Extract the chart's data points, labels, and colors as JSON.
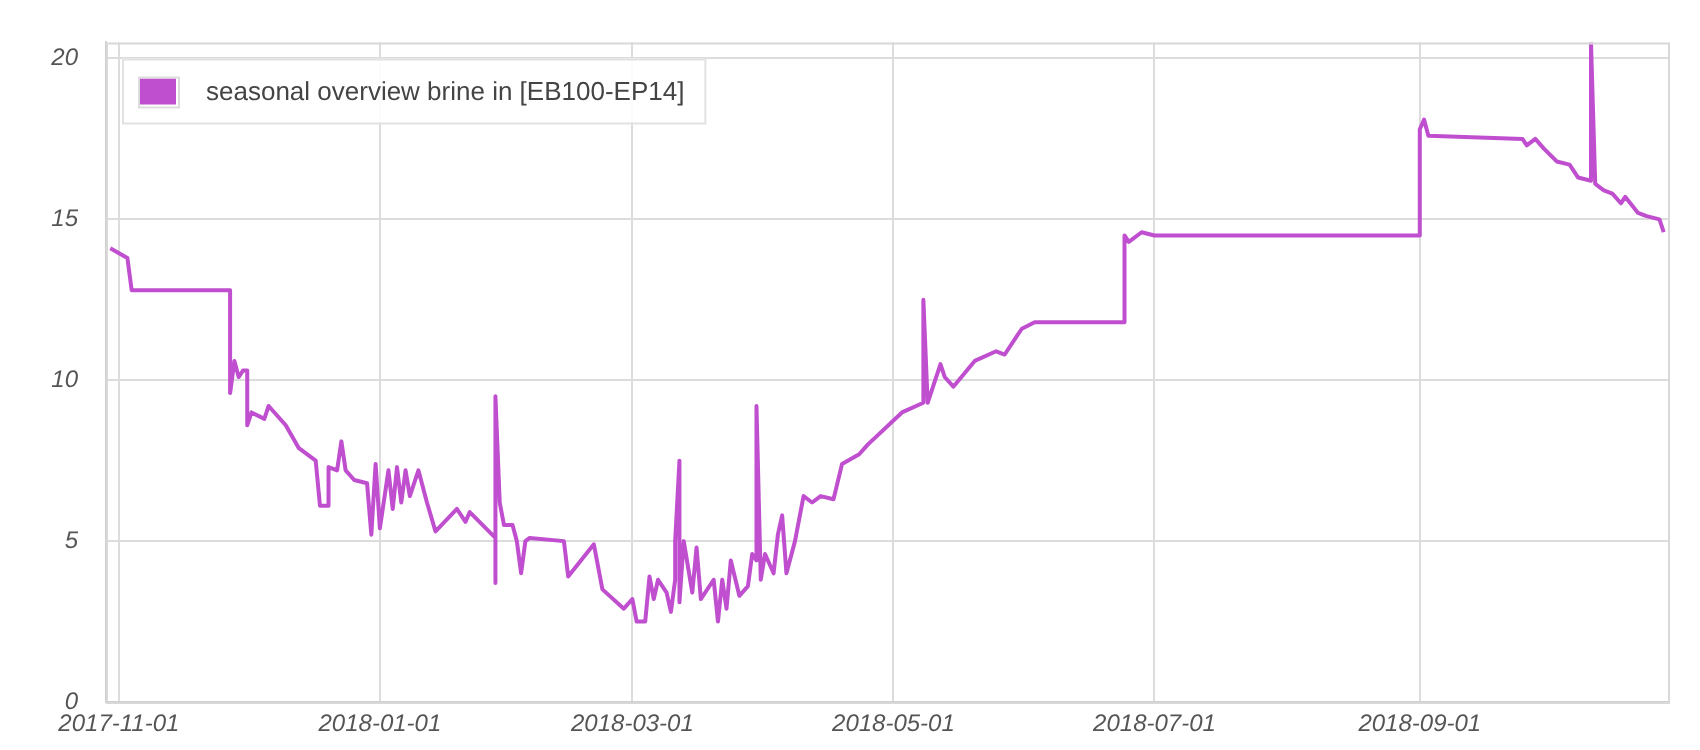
{
  "chart_data": {
    "type": "line",
    "legend": "top left",
    "grid": true,
    "marker": "none",
    "line_style": "solid",
    "xlim": [
      "2017-10-29",
      "2018-10-29"
    ],
    "xticks": [
      "2017-11-01",
      "2018-01-01",
      "2018-03-01",
      "2018-05-01",
      "2018-07-01",
      "2018-09-01"
    ],
    "ylim": [
      0,
      20.5
    ],
    "yticks": [
      0,
      5,
      10,
      15,
      20
    ],
    "series": [
      {
        "name": "seasonal overview brine in [EB100-EP14]",
        "color": "#c04fcf",
        "x": [
          "2017-10-30",
          "2017-11-03",
          "2017-11-04",
          "2017-11-27",
          "2017-11-27",
          "2017-11-28",
          "2017-11-29",
          "2017-11-30",
          "2017-12-01",
          "2017-12-01",
          "2017-12-02",
          "2017-12-05",
          "2017-12-06",
          "2017-12-10",
          "2017-12-13",
          "2017-12-17",
          "2017-12-18",
          "2017-12-20",
          "2017-12-20",
          "2017-12-22",
          "2017-12-23",
          "2017-12-24",
          "2017-12-26",
          "2017-12-29",
          "2017-12-30",
          "2017-12-31",
          "2018-01-01",
          "2018-01-03",
          "2018-01-04",
          "2018-01-05",
          "2018-01-06",
          "2018-01-07",
          "2018-01-08",
          "2018-01-10",
          "2018-01-12",
          "2018-01-14",
          "2018-01-19",
          "2018-01-21",
          "2018-01-22",
          "2018-01-28",
          "2018-01-28",
          "2018-01-28",
          "2018-01-29",
          "2018-01-30",
          "2018-02-01",
          "2018-02-02",
          "2018-02-03",
          "2018-02-04",
          "2018-02-05",
          "2018-02-13",
          "2018-02-14",
          "2018-02-20",
          "2018-02-22",
          "2018-02-27",
          "2018-03-01",
          "2018-03-02",
          "2018-03-04",
          "2018-03-05",
          "2018-03-06",
          "2018-03-07",
          "2018-03-09",
          "2018-03-10",
          "2018-03-11",
          "2018-03-11",
          "2018-03-12",
          "2018-03-12",
          "2018-03-13",
          "2018-03-15",
          "2018-03-16",
          "2018-03-17",
          "2018-03-20",
          "2018-03-21",
          "2018-03-22",
          "2018-03-23",
          "2018-03-24",
          "2018-03-26",
          "2018-03-28",
          "2018-03-29",
          "2018-03-30",
          "2018-03-30",
          "2018-03-31",
          "2018-04-01",
          "2018-04-03",
          "2018-04-04",
          "2018-04-05",
          "2018-04-06",
          "2018-04-08",
          "2018-04-10",
          "2018-04-12",
          "2018-04-14",
          "2018-04-17",
          "2018-04-19",
          "2018-04-23",
          "2018-04-25",
          "2018-05-03",
          "2018-05-08",
          "2018-05-08",
          "2018-05-09",
          "2018-05-12",
          "2018-05-13",
          "2018-05-15",
          "2018-05-20",
          "2018-05-25",
          "2018-05-27",
          "2018-05-31",
          "2018-06-03",
          "2018-06-24",
          "2018-06-24",
          "2018-06-25",
          "2018-06-28",
          "2018-07-01",
          "2018-09-01",
          "2018-09-01",
          "2018-09-02",
          "2018-09-03",
          "2018-09-25",
          "2018-09-26",
          "2018-09-28",
          "2018-09-30",
          "2018-10-03",
          "2018-10-06",
          "2018-10-08",
          "2018-10-11",
          "2018-10-11",
          "2018-10-12",
          "2018-10-14",
          "2018-10-16",
          "2018-10-18",
          "2018-10-19",
          "2018-10-22",
          "2018-10-24",
          "2018-10-27",
          "2018-10-28"
        ],
        "values": [
          14.1,
          13.8,
          12.8,
          12.8,
          9.6,
          10.6,
          10.1,
          10.3,
          10.3,
          8.6,
          9.0,
          8.8,
          9.2,
          8.6,
          7.9,
          7.5,
          6.1,
          6.1,
          7.3,
          7.2,
          8.1,
          7.2,
          6.9,
          6.8,
          5.2,
          7.4,
          5.4,
          7.2,
          6.0,
          7.3,
          6.2,
          7.2,
          6.4,
          7.2,
          6.2,
          5.3,
          6.0,
          5.6,
          5.9,
          5.1,
          3.7,
          9.5,
          6.2,
          5.5,
          5.5,
          5.0,
          4.0,
          5.0,
          5.1,
          5.0,
          3.9,
          4.9,
          3.5,
          2.9,
          3.2,
          2.5,
          2.5,
          3.9,
          3.2,
          3.8,
          3.4,
          2.8,
          3.8,
          5.0,
          7.5,
          3.1,
          5.0,
          3.4,
          4.8,
          3.2,
          3.8,
          2.5,
          3.8,
          2.9,
          4.4,
          3.3,
          3.6,
          4.6,
          4.4,
          9.2,
          3.8,
          4.6,
          4.0,
          5.2,
          5.8,
          4.0,
          5.0,
          6.4,
          6.2,
          6.4,
          6.3,
          7.4,
          7.7,
          8.0,
          9.0,
          9.3,
          12.5,
          9.3,
          10.5,
          10.1,
          9.8,
          10.6,
          10.9,
          10.8,
          11.6,
          11.8,
          11.8,
          14.5,
          14.3,
          14.6,
          14.5,
          14.5,
          17.8,
          18.1,
          17.6,
          17.5,
          17.3,
          17.5,
          17.2,
          16.8,
          16.7,
          16.3,
          16.2,
          20.5,
          16.1,
          15.9,
          15.8,
          15.5,
          15.7,
          15.2,
          15.1,
          15.0,
          14.6
        ]
      }
    ]
  }
}
